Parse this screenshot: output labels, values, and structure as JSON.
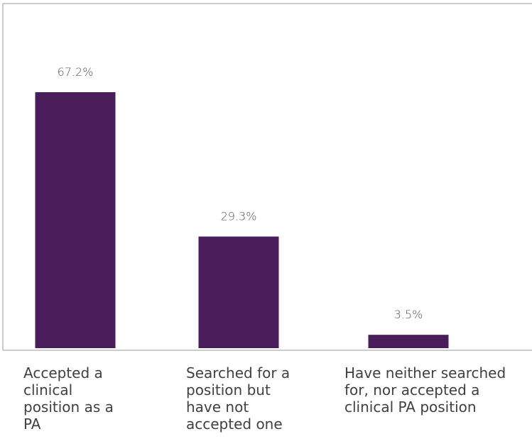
{
  "chart_data": {
    "type": "bar",
    "categories": [
      "Accepted a\nclinical\nposition as a\nPA",
      "Searched for a\nposition but\nhave not\naccepted one",
      "Have neither searched\nfor, nor accepted a\nclinical PA position"
    ],
    "values": [
      67.2,
      29.3,
      3.5
    ],
    "value_labels": [
      "67.2%",
      "29.3%",
      "3.5%"
    ],
    "ylim": [
      0,
      100
    ],
    "grid": false,
    "legend": "none",
    "bar_color": "#4a1e5a",
    "axis_color": "#9a9a9a"
  }
}
